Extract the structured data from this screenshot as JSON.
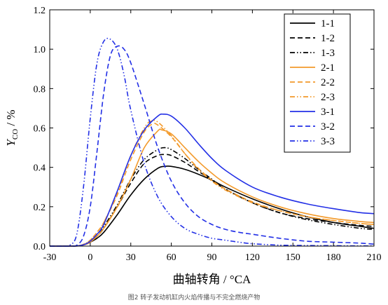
{
  "caption": "图2 转子发动机缸内火焰传播与不完全燃烧产物",
  "chart_data": {
    "type": "line",
    "title": "",
    "xlabel": "曲轴转角 / °CA",
    "ylabel_main": "Y",
    "ylabel_sub": "CO",
    "ylabel_unit": " / %",
    "xlim": [
      -30,
      210
    ],
    "ylim": [
      0,
      1.2
    ],
    "xticks": [
      -30,
      0,
      30,
      60,
      90,
      120,
      150,
      180,
      210
    ],
    "xtick_labels": [
      "-30",
      "0",
      "30",
      "60",
      "90",
      "120",
      "150",
      "180",
      "210"
    ],
    "yticks": [
      0,
      0.2,
      0.4,
      0.6,
      0.8,
      1.0,
      1.2
    ],
    "ytick_labels": [
      "0.0",
      "0.2",
      "0.4",
      "0.6",
      "0.8",
      "1.0",
      "1.2"
    ],
    "legend_position": "top-right",
    "grid": false,
    "colors": {
      "black": "#000000",
      "orange": "#f39a2b",
      "blue": "#2330e6"
    },
    "series": [
      {
        "name": "1-1",
        "color": "#000000",
        "dash": "solid",
        "x": [
          -30,
          -15,
          -8,
          -3,
          0,
          5,
          10,
          20,
          30,
          40,
          50,
          55,
          60,
          70,
          80,
          90,
          100,
          120,
          140,
          160,
          180,
          200,
          210
        ],
        "y": [
          0,
          0,
          0.002,
          0.01,
          0.02,
          0.04,
          0.07,
          0.16,
          0.26,
          0.34,
          0.395,
          0.405,
          0.405,
          0.39,
          0.365,
          0.335,
          0.3,
          0.24,
          0.19,
          0.15,
          0.12,
          0.1,
          0.09
        ]
      },
      {
        "name": "1-2",
        "color": "#000000",
        "dash": "dashed",
        "x": [
          -30,
          -15,
          -8,
          -3,
          0,
          5,
          10,
          20,
          30,
          40,
          50,
          55,
          60,
          70,
          80,
          90,
          100,
          120,
          140,
          160,
          180,
          200,
          210
        ],
        "y": [
          0,
          0,
          0.003,
          0.012,
          0.025,
          0.05,
          0.09,
          0.2,
          0.32,
          0.42,
          0.46,
          0.465,
          0.46,
          0.425,
          0.38,
          0.335,
          0.29,
          0.22,
          0.17,
          0.14,
          0.12,
          0.105,
          0.1
        ]
      },
      {
        "name": "1-3",
        "color": "#000000",
        "dash": "dashdotdot",
        "x": [
          -30,
          -15,
          -8,
          -3,
          0,
          5,
          10,
          20,
          30,
          40,
          50,
          55,
          60,
          70,
          80,
          90,
          100,
          120,
          140,
          160,
          180,
          200,
          210
        ],
        "y": [
          0,
          0,
          0.003,
          0.015,
          0.03,
          0.06,
          0.1,
          0.21,
          0.34,
          0.44,
          0.49,
          0.5,
          0.49,
          0.445,
          0.39,
          0.34,
          0.29,
          0.22,
          0.17,
          0.135,
          0.11,
          0.09,
          0.085
        ]
      },
      {
        "name": "2-1",
        "color": "#f39a2b",
        "dash": "solid",
        "x": [
          -30,
          -15,
          -8,
          -3,
          0,
          5,
          10,
          20,
          30,
          40,
          50,
          53,
          60,
          70,
          80,
          90,
          100,
          120,
          140,
          160,
          180,
          200,
          210
        ],
        "y": [
          0,
          0,
          0.002,
          0.01,
          0.02,
          0.05,
          0.09,
          0.2,
          0.34,
          0.5,
          0.585,
          0.59,
          0.57,
          0.5,
          0.43,
          0.37,
          0.32,
          0.25,
          0.2,
          0.165,
          0.14,
          0.125,
          0.12
        ]
      },
      {
        "name": "2-2",
        "color": "#f39a2b",
        "dash": "dashed",
        "x": [
          -30,
          -15,
          -8,
          -3,
          0,
          5,
          10,
          20,
          30,
          40,
          46,
          50,
          60,
          70,
          80,
          90,
          100,
          120,
          140,
          160,
          180,
          200,
          210
        ],
        "y": [
          0,
          0,
          0.003,
          0.015,
          0.03,
          0.07,
          0.12,
          0.26,
          0.44,
          0.58,
          0.62,
          0.615,
          0.555,
          0.47,
          0.395,
          0.335,
          0.29,
          0.225,
          0.18,
          0.15,
          0.13,
          0.115,
          0.11
        ]
      },
      {
        "name": "2-3",
        "color": "#f39a2b",
        "dash": "dashdotdot",
        "x": [
          -30,
          -15,
          -8,
          -3,
          0,
          5,
          10,
          20,
          30,
          40,
          45,
          50,
          60,
          70,
          80,
          90,
          100,
          120,
          140,
          160,
          180,
          200,
          210
        ],
        "y": [
          0,
          0,
          0.003,
          0.015,
          0.03,
          0.07,
          0.12,
          0.27,
          0.46,
          0.6,
          0.635,
          0.63,
          0.56,
          0.47,
          0.39,
          0.33,
          0.285,
          0.22,
          0.18,
          0.15,
          0.13,
          0.115,
          0.11
        ]
      },
      {
        "name": "3-1",
        "color": "#2330e6",
        "dash": "solid",
        "x": [
          -30,
          -15,
          -8,
          -3,
          0,
          5,
          10,
          20,
          30,
          40,
          50,
          54,
          60,
          70,
          80,
          90,
          100,
          120,
          140,
          160,
          180,
          200,
          210
        ],
        "y": [
          0,
          0,
          0.002,
          0.012,
          0.025,
          0.06,
          0.11,
          0.28,
          0.46,
          0.59,
          0.66,
          0.67,
          0.66,
          0.6,
          0.52,
          0.445,
          0.385,
          0.3,
          0.25,
          0.215,
          0.19,
          0.17,
          0.165
        ]
      },
      {
        "name": "3-2",
        "color": "#2330e6",
        "dash": "dashed",
        "x": [
          -30,
          -15,
          -10,
          -5,
          0,
          5,
          10,
          15,
          20,
          25,
          30,
          40,
          50,
          60,
          70,
          80,
          90,
          100,
          110,
          120,
          140,
          160,
          180,
          200,
          210
        ],
        "y": [
          0,
          0,
          0.005,
          0.05,
          0.2,
          0.48,
          0.78,
          0.97,
          1.015,
          1.0,
          0.93,
          0.72,
          0.5,
          0.33,
          0.22,
          0.15,
          0.11,
          0.085,
          0.07,
          0.06,
          0.04,
          0.025,
          0.02,
          0.015,
          0.01
        ]
      },
      {
        "name": "3-3",
        "color": "#2330e6",
        "dash": "dashdotdot",
        "x": [
          -30,
          -20,
          -15,
          -10,
          -5,
          0,
          5,
          10,
          15,
          20,
          25,
          30,
          40,
          50,
          60,
          70,
          80,
          90,
          100,
          110,
          120,
          140,
          160,
          180,
          200,
          210
        ],
        "y": [
          0,
          0,
          0.005,
          0.06,
          0.3,
          0.65,
          0.93,
          1.04,
          1.05,
          1.0,
          0.87,
          0.69,
          0.42,
          0.25,
          0.15,
          0.09,
          0.06,
          0.04,
          0.03,
          0.02,
          0.012,
          0.005,
          0.003,
          0.002,
          0.001,
          0.001
        ]
      }
    ]
  }
}
